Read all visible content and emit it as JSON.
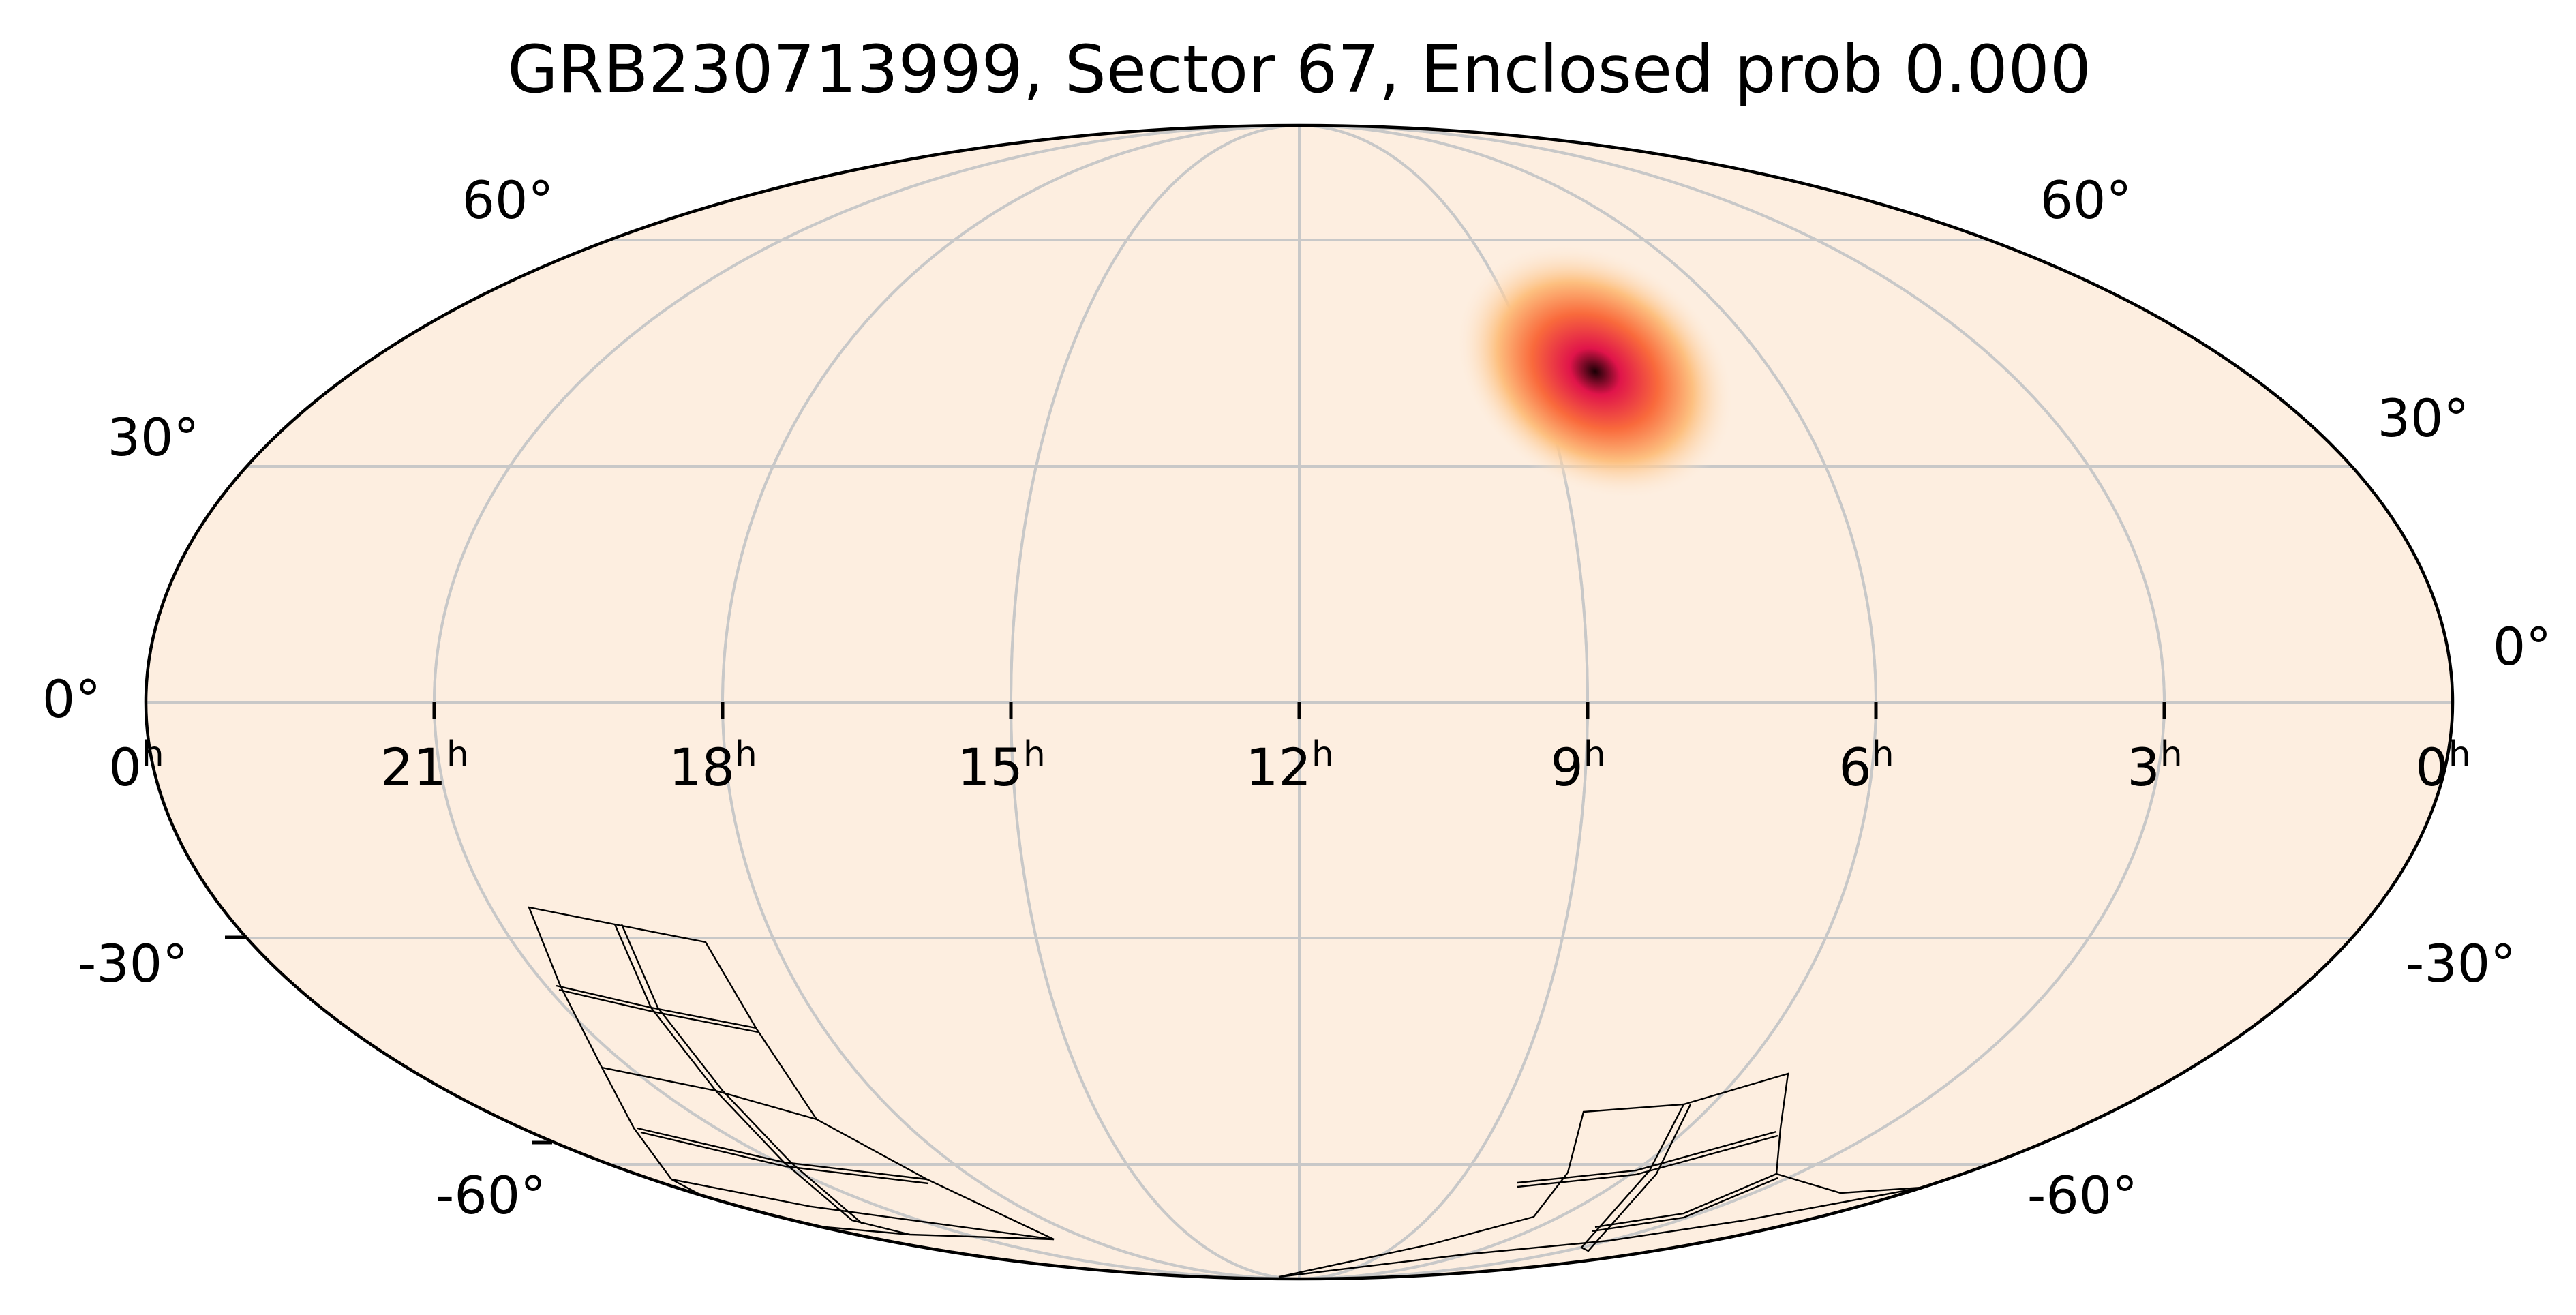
{
  "title": "GRB230713999, Sector 67, Enclosed prob 0.000",
  "colors": {
    "background_map": "#fdeee0",
    "grid": "#c8c8c8",
    "outline": "#000000",
    "prob_outer": "#fdc080",
    "prob_mid": "#f96a3c",
    "prob_inner": "#e0144a",
    "prob_core": "#1a0005"
  },
  "projection": "mollweide",
  "ra_ticks": [
    {
      "value": "0",
      "unit": "h"
    },
    {
      "value": "21",
      "unit": "h"
    },
    {
      "value": "18",
      "unit": "h"
    },
    {
      "value": "15",
      "unit": "h"
    },
    {
      "value": "12",
      "unit": "h"
    },
    {
      "value": "9",
      "unit": "h"
    },
    {
      "value": "6",
      "unit": "h"
    },
    {
      "value": "3",
      "unit": "h"
    },
    {
      "value": "0",
      "unit": "h"
    }
  ],
  "dec_ticks_left": [
    "60°",
    "30°",
    "0°",
    "-30°",
    "-60°"
  ],
  "dec_ticks_right": [
    "60°",
    "30°",
    "0°",
    "-30°",
    "-60°"
  ],
  "probability_peak": {
    "ra_hours": 8.9,
    "dec_deg": 40
  }
}
